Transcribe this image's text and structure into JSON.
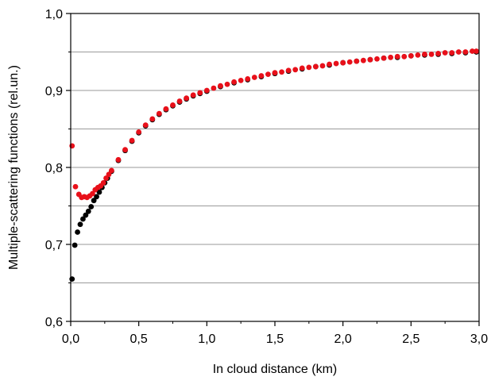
{
  "chart_data": {
    "type": "scatter",
    "title": "",
    "xlabel": "In cloud distance (km)",
    "ylabel": "Multiple-scattering functions (rel.un.)",
    "xlim": [
      0,
      3.0
    ],
    "ylim": [
      0.6,
      1.0
    ],
    "x_ticks": [
      "0,0",
      "0,5",
      "1,0",
      "1,5",
      "2,0",
      "2,5",
      "3,0"
    ],
    "y_ticks": [
      "0,6",
      "0,7",
      "0,8",
      "0,9",
      "1,0"
    ],
    "grid": "horizontal, every 0.05",
    "legend": "none",
    "series": [
      {
        "color": "#000000",
        "points": [
          [
            0.01,
            0.655
          ],
          [
            0.03,
            0.699
          ],
          [
            0.05,
            0.716
          ],
          [
            0.07,
            0.726
          ],
          [
            0.09,
            0.733
          ],
          [
            0.11,
            0.738
          ],
          [
            0.13,
            0.743
          ],
          [
            0.15,
            0.749
          ],
          [
            0.17,
            0.757
          ],
          [
            0.19,
            0.762
          ],
          [
            0.21,
            0.768
          ],
          [
            0.23,
            0.774
          ],
          [
            0.25,
            0.78
          ],
          [
            0.27,
            0.786
          ],
          [
            0.3,
            0.795
          ],
          [
            0.35,
            0.809
          ],
          [
            0.4,
            0.822
          ],
          [
            0.45,
            0.834
          ],
          [
            0.5,
            0.845
          ],
          [
            0.55,
            0.854
          ],
          [
            0.6,
            0.862
          ],
          [
            0.65,
            0.869
          ],
          [
            0.7,
            0.875
          ],
          [
            0.75,
            0.88
          ],
          [
            0.8,
            0.885
          ],
          [
            0.85,
            0.889
          ],
          [
            0.9,
            0.893
          ],
          [
            0.95,
            0.896
          ],
          [
            1.0,
            0.899
          ],
          [
            1.1,
            0.905
          ],
          [
            1.2,
            0.91
          ],
          [
            1.3,
            0.914
          ],
          [
            1.4,
            0.918
          ],
          [
            1.5,
            0.922
          ],
          [
            1.6,
            0.925
          ],
          [
            1.7,
            0.928
          ],
          [
            1.8,
            0.931
          ],
          [
            1.9,
            0.933
          ],
          [
            2.0,
            0.936
          ],
          [
            2.1,
            0.938
          ],
          [
            2.2,
            0.94
          ],
          [
            2.3,
            0.942
          ],
          [
            2.4,
            0.943
          ],
          [
            2.5,
            0.945
          ],
          [
            2.6,
            0.946
          ],
          [
            2.7,
            0.947
          ],
          [
            2.8,
            0.948
          ],
          [
            2.9,
            0.949
          ],
          [
            2.98,
            0.95
          ]
        ]
      },
      {
        "color": "#e8101a",
        "points": [
          [
            0.01,
            0.828
          ],
          [
            0.035,
            0.775
          ],
          [
            0.06,
            0.765
          ],
          [
            0.08,
            0.761
          ],
          [
            0.1,
            0.762
          ],
          [
            0.12,
            0.761
          ],
          [
            0.14,
            0.763
          ],
          [
            0.16,
            0.766
          ],
          [
            0.18,
            0.771
          ],
          [
            0.2,
            0.774
          ],
          [
            0.22,
            0.776
          ],
          [
            0.24,
            0.78
          ],
          [
            0.26,
            0.786
          ],
          [
            0.28,
            0.791
          ],
          [
            0.3,
            0.796
          ],
          [
            0.35,
            0.81
          ],
          [
            0.4,
            0.823
          ],
          [
            0.45,
            0.835
          ],
          [
            0.5,
            0.846
          ],
          [
            0.55,
            0.855
          ],
          [
            0.6,
            0.863
          ],
          [
            0.65,
            0.87
          ],
          [
            0.7,
            0.876
          ],
          [
            0.75,
            0.881
          ],
          [
            0.8,
            0.886
          ],
          [
            0.85,
            0.89
          ],
          [
            0.9,
            0.894
          ],
          [
            0.95,
            0.897
          ],
          [
            1.0,
            0.9
          ],
          [
            1.05,
            0.903
          ],
          [
            1.1,
            0.906
          ],
          [
            1.15,
            0.908
          ],
          [
            1.2,
            0.911
          ],
          [
            1.25,
            0.913
          ],
          [
            1.3,
            0.915
          ],
          [
            1.35,
            0.917
          ],
          [
            1.4,
            0.919
          ],
          [
            1.45,
            0.921
          ],
          [
            1.5,
            0.923
          ],
          [
            1.55,
            0.924
          ],
          [
            1.6,
            0.926
          ],
          [
            1.65,
            0.927
          ],
          [
            1.7,
            0.929
          ],
          [
            1.75,
            0.93
          ],
          [
            1.8,
            0.931
          ],
          [
            1.85,
            0.932
          ],
          [
            1.9,
            0.934
          ],
          [
            1.95,
            0.935
          ],
          [
            2.0,
            0.936
          ],
          [
            2.05,
            0.937
          ],
          [
            2.1,
            0.938
          ],
          [
            2.15,
            0.939
          ],
          [
            2.2,
            0.94
          ],
          [
            2.25,
            0.941
          ],
          [
            2.3,
            0.942
          ],
          [
            2.35,
            0.943
          ],
          [
            2.4,
            0.944
          ],
          [
            2.45,
            0.944
          ],
          [
            2.5,
            0.945
          ],
          [
            2.55,
            0.946
          ],
          [
            2.6,
            0.947
          ],
          [
            2.65,
            0.947
          ],
          [
            2.7,
            0.948
          ],
          [
            2.75,
            0.949
          ],
          [
            2.8,
            0.949
          ],
          [
            2.85,
            0.95
          ],
          [
            2.9,
            0.95
          ],
          [
            2.95,
            0.951
          ],
          [
            2.98,
            0.951
          ]
        ]
      }
    ]
  }
}
